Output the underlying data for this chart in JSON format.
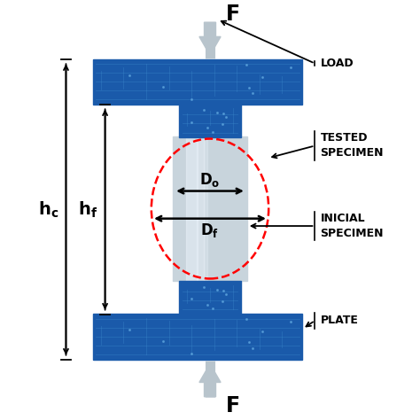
{
  "bg_color": "#ffffff",
  "plate_blue": "#1a5aaa",
  "plate_blue_dark": "#0d3d7a",
  "spec_color": "#c8d4dc",
  "spec_highlight": "#e8eef4",
  "arrow_gray": "#b8c4cc",
  "arrow_gray2": "#d0d8e0",
  "figsize": [
    4.74,
    4.74
  ],
  "dpi": 100,
  "labels": {
    "load": "LOAD",
    "tested_specimen": "TESTED\nSPECIMEN",
    "inicial_specimen": "INICIAL\nSPECIMEN",
    "plate": "PLATE",
    "F": "F",
    "Do": "D",
    "Do_sub": "o",
    "Df": "D",
    "Df_sub": "f",
    "hc": "h",
    "hc_sub": "c",
    "hf": "h",
    "hf_sub": "f"
  }
}
